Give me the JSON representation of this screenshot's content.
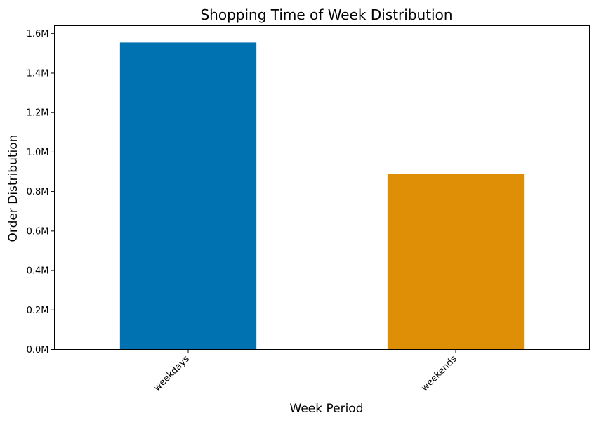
{
  "chart_data": {
    "type": "bar",
    "title": "Shopping Time of Week Distribution",
    "xlabel": "Week Period",
    "ylabel": "Order Distribution",
    "categories": [
      "weekdays",
      "weekends"
    ],
    "values": [
      1555000,
      890000
    ],
    "colors": [
      "#0072b2",
      "#de8f05"
    ],
    "ylim": [
      0,
      1640000
    ],
    "yticks": [
      0,
      200000,
      400000,
      600000,
      800000,
      1000000,
      1200000,
      1400000,
      1600000
    ],
    "ytick_labels": [
      "0.0M",
      "0.2M",
      "0.4M",
      "0.6M",
      "0.8M",
      "1.0M",
      "1.2M",
      "1.4M",
      "1.6M"
    ],
    "grid": false,
    "legend": false
  }
}
